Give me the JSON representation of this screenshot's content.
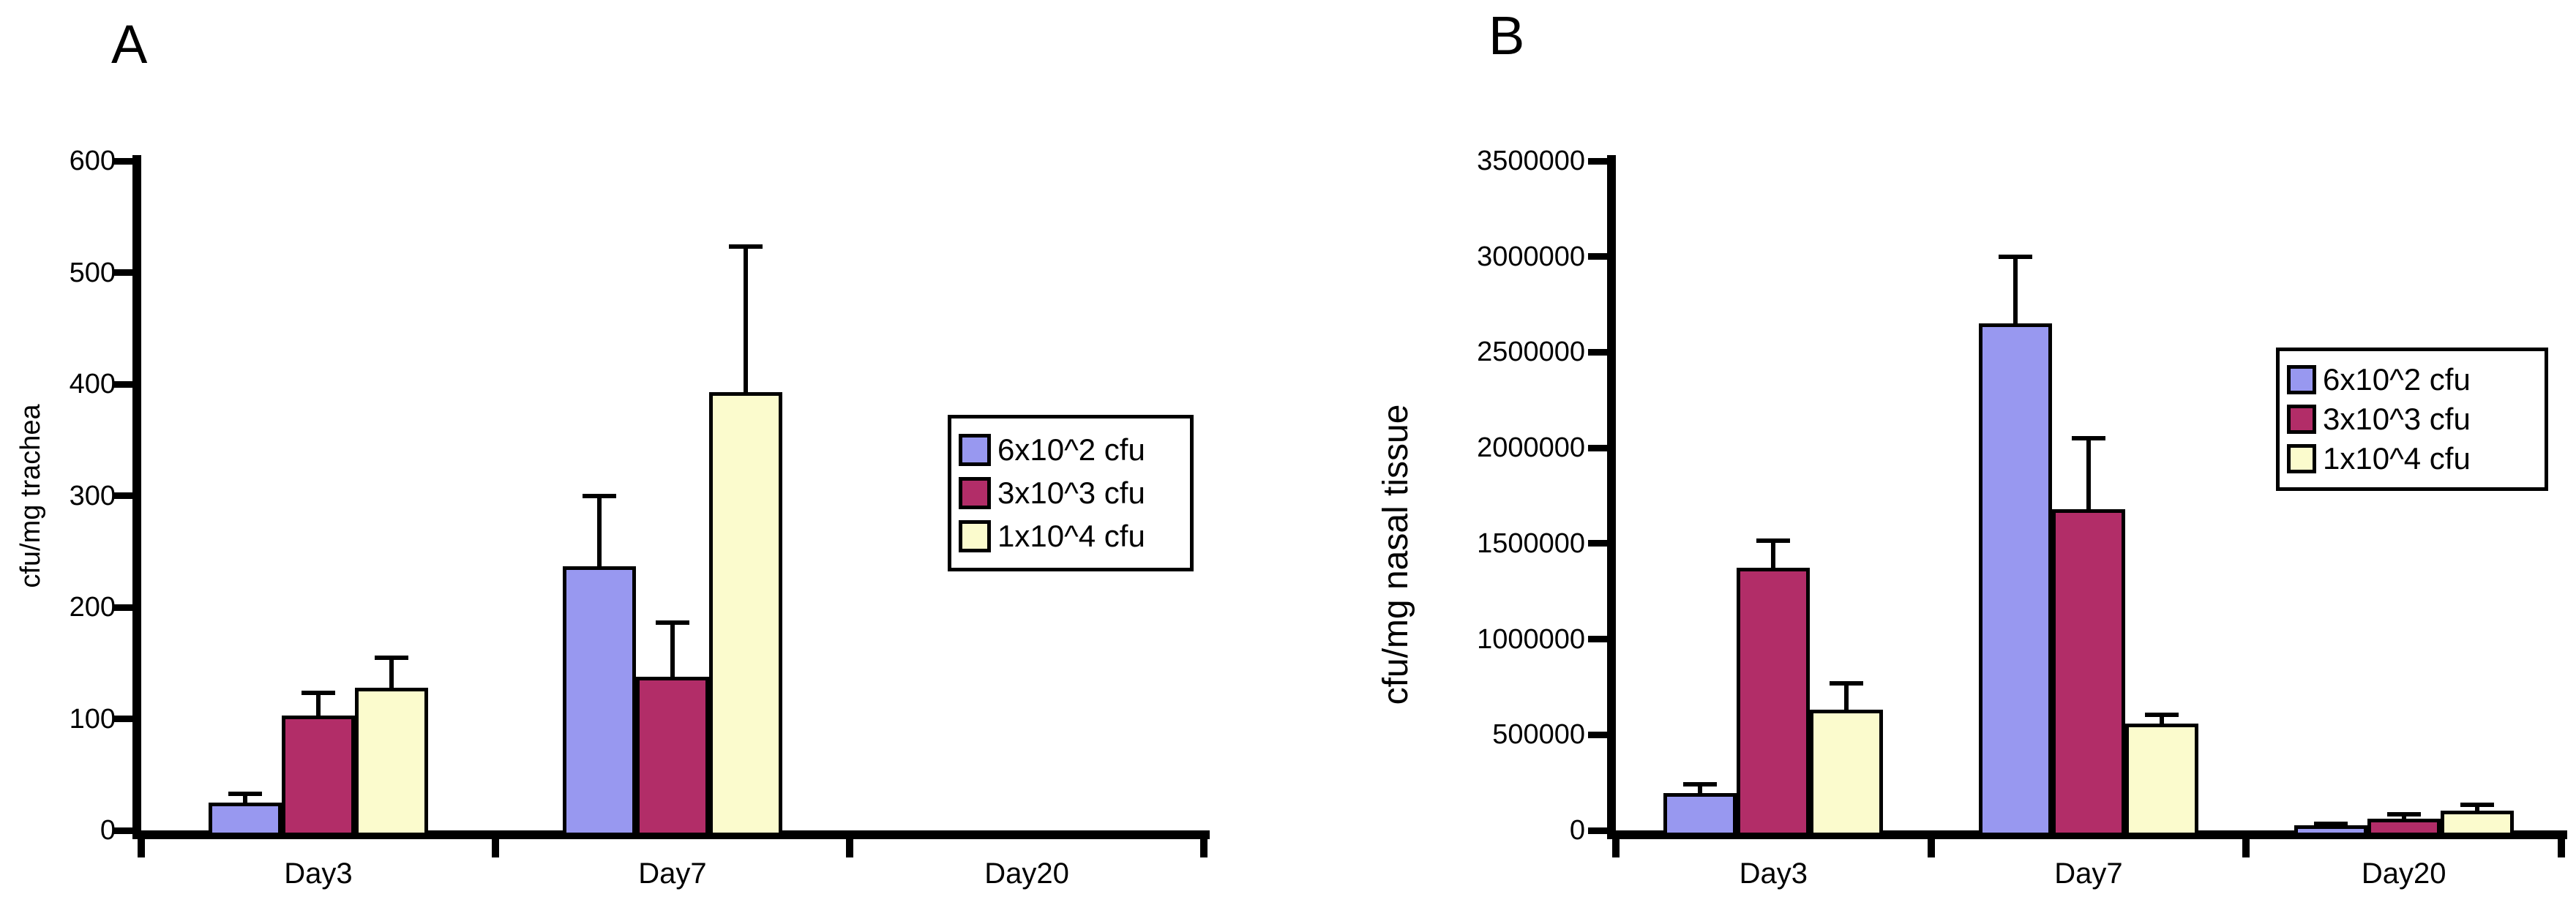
{
  "figure": {
    "background": "#ffffff",
    "panels": [
      "A",
      "B"
    ]
  },
  "chart_data": [
    {
      "type": "bar",
      "panel": "A",
      "title": "",
      "xlabel": "",
      "ylabel": "cfu/mg trachea",
      "categories": [
        "Day3",
        "Day7",
        "Day20"
      ],
      "series": [
        {
          "name": "6x10^2 cfu",
          "color": "#9898f0",
          "values": [
            25,
            237,
            0
          ],
          "errors": [
            8,
            63,
            0
          ]
        },
        {
          "name": "3x10^3 cfu",
          "color": "#b22d68",
          "values": [
            103,
            138,
            0
          ],
          "errors": [
            20,
            48,
            0
          ]
        },
        {
          "name": "1x10^4 cfu",
          "color": "#fbfbcd",
          "values": [
            128,
            393,
            0
          ],
          "errors": [
            27,
            130,
            0
          ]
        }
      ],
      "ylim": [
        0,
        600
      ],
      "ytick_step": 100,
      "ytick_labels": [
        "0",
        "100",
        "200",
        "300",
        "400",
        "500",
        "600"
      ],
      "grid": false,
      "legend_position": "right-inside",
      "error_bars": "upper"
    },
    {
      "type": "bar",
      "panel": "B",
      "title": "",
      "xlabel": "",
      "ylabel": "cfu/mg nasal tissue",
      "categories": [
        "Day3",
        "Day7",
        "Day20"
      ],
      "series": [
        {
          "name": "6x10^2 cfu",
          "color": "#9898f0",
          "values": [
            195000,
            2650000,
            25000
          ],
          "errors": [
            45000,
            350000,
            10000
          ]
        },
        {
          "name": "3x10^3 cfu",
          "color": "#b22d68",
          "values": [
            1375000,
            1680000,
            60000
          ],
          "errors": [
            140000,
            370000,
            25000
          ]
        },
        {
          "name": "1x10^4 cfu",
          "color": "#fbfbcd",
          "values": [
            630000,
            560000,
            105000
          ],
          "errors": [
            140000,
            45000,
            30000
          ]
        }
      ],
      "ylim": [
        0,
        3500000
      ],
      "ytick_step": 500000,
      "ytick_labels": [
        "0",
        "500000",
        "1000000",
        "1500000",
        "2000000",
        "2500000",
        "3000000",
        "3500000"
      ],
      "grid": false,
      "legend_position": "right-inside",
      "error_bars": "upper"
    }
  ]
}
